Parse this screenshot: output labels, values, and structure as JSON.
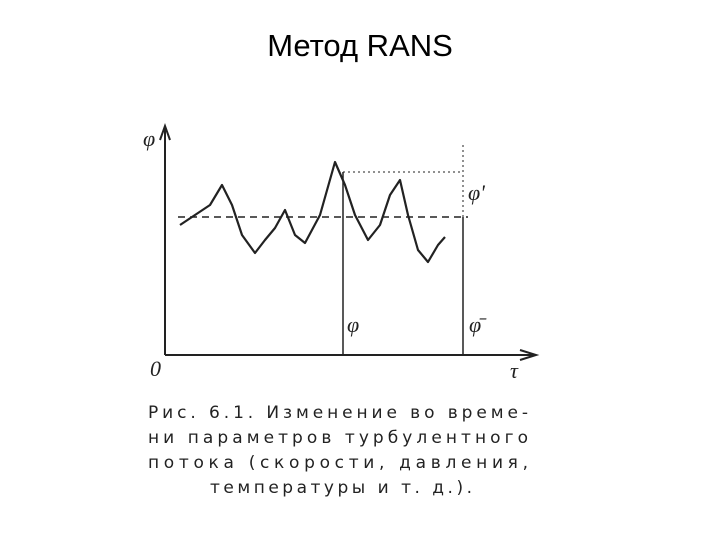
{
  "title": "Метод RANS",
  "figure": {
    "axis_labels": {
      "y": "φ",
      "x": "τ",
      "origin": "0"
    },
    "annotations": {
      "fluctuation": "φ'",
      "instant": "φ",
      "mean": "φ̄"
    },
    "caption": [
      "Рис. 6.1. Изменение во време-",
      "ни параметров турбулентного",
      "потока (скорости, давления,",
      "температуры и т. д.)."
    ]
  }
}
